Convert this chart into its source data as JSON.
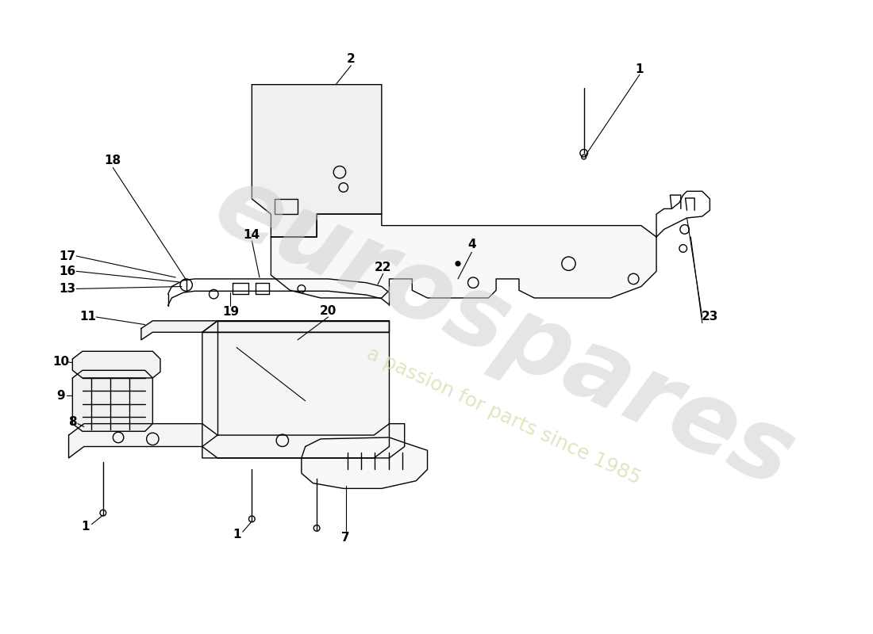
{
  "bg_color": "#ffffff",
  "line_color": "#000000",
  "lw": 1.0,
  "watermark_text1": "eurospares",
  "watermark_text2": "a passion for parts since 1985",
  "wm_color1": "#cccccc",
  "wm_color2": "#ddddb0"
}
